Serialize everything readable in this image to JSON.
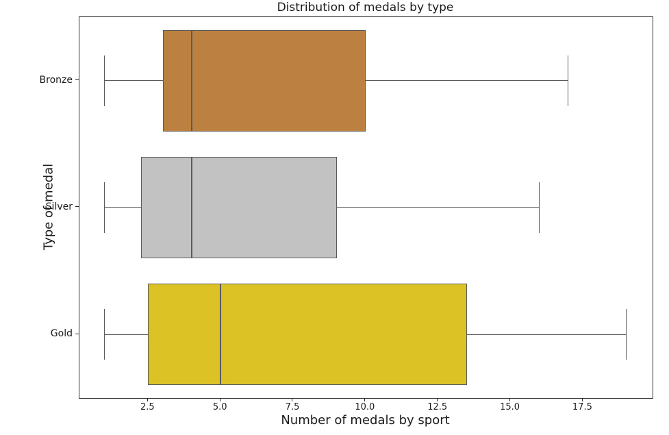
{
  "title": "Distribution of medals by type",
  "chart_data": {
    "type": "boxplot",
    "orientation": "horizontal",
    "title": "Distribution of medals by type",
    "xlabel": "Number of medals by sport",
    "ylabel": "Type of medal",
    "categories": [
      "Bronze",
      "Silver",
      "Gold"
    ],
    "series": [
      {
        "name": "Bronze",
        "min": 1,
        "q1": 3,
        "median": 4,
        "q3": 10,
        "max": 17,
        "color": "#bc8140"
      },
      {
        "name": "Silver",
        "min": 1,
        "q1": 2.25,
        "median": 4,
        "q3": 9,
        "max": 16,
        "color": "#c2c2c2"
      },
      {
        "name": "Gold",
        "min": 1,
        "q1": 2.5,
        "median": 5,
        "q3": 13.5,
        "max": 19,
        "color": "#dcc225"
      }
    ],
    "xticks": [
      2.5,
      5.0,
      7.5,
      10.0,
      12.5,
      15.0,
      17.5
    ],
    "xtick_labels": [
      "2.5",
      "5.0",
      "7.5",
      "10.0",
      "12.5",
      "15.0",
      "17.5"
    ],
    "xlim": [
      0.13,
      19.9
    ],
    "grid": false,
    "legend": null,
    "edge_color": "#5a5a5a",
    "box_width_frac": 0.8,
    "cap_width_frac": 0.4
  }
}
